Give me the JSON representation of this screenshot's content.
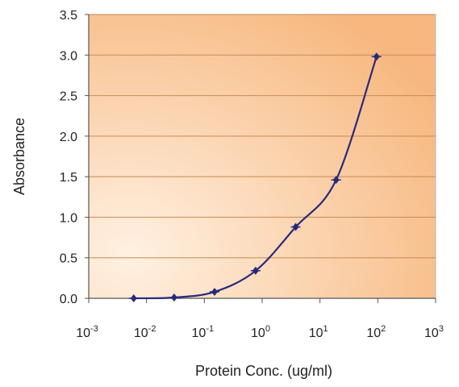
{
  "chart_data": {
    "type": "line",
    "xlabel": "Protein Conc. (ug/ml)",
    "ylabel": "Absorbance",
    "x_scale": "log",
    "xlim": [
      0.001,
      1000
    ],
    "ylim": [
      0,
      3.5
    ],
    "x_ticks": [
      {
        "value": 0.001,
        "base": "10",
        "exp": "-3"
      },
      {
        "value": 0.01,
        "base": "10",
        "exp": "-2"
      },
      {
        "value": 0.1,
        "base": "10",
        "exp": "-1"
      },
      {
        "value": 1,
        "base": "10",
        "exp": "0"
      },
      {
        "value": 10,
        "base": "10",
        "exp": "1"
      },
      {
        "value": 100,
        "base": "10",
        "exp": "2"
      },
      {
        "value": 1000,
        "base": "10",
        "exp": "3"
      }
    ],
    "y_ticks": [
      "0.0",
      "0.5",
      "1.0",
      "1.5",
      "2.0",
      "2.5",
      "3.0",
      "3.5"
    ],
    "grid": "horizontal",
    "series": [
      {
        "x": [
          0.006,
          0.03,
          0.15,
          0.77,
          3.8,
          19,
          95
        ],
        "y": [
          0.0,
          0.01,
          0.08,
          0.34,
          0.88,
          1.46,
          2.98
        ]
      }
    ],
    "colors": {
      "plot_bg_inner": "#ffecd8",
      "plot_bg_outer": "#f7b77e",
      "gridline": "#c98a52",
      "series": "#29297a"
    }
  }
}
